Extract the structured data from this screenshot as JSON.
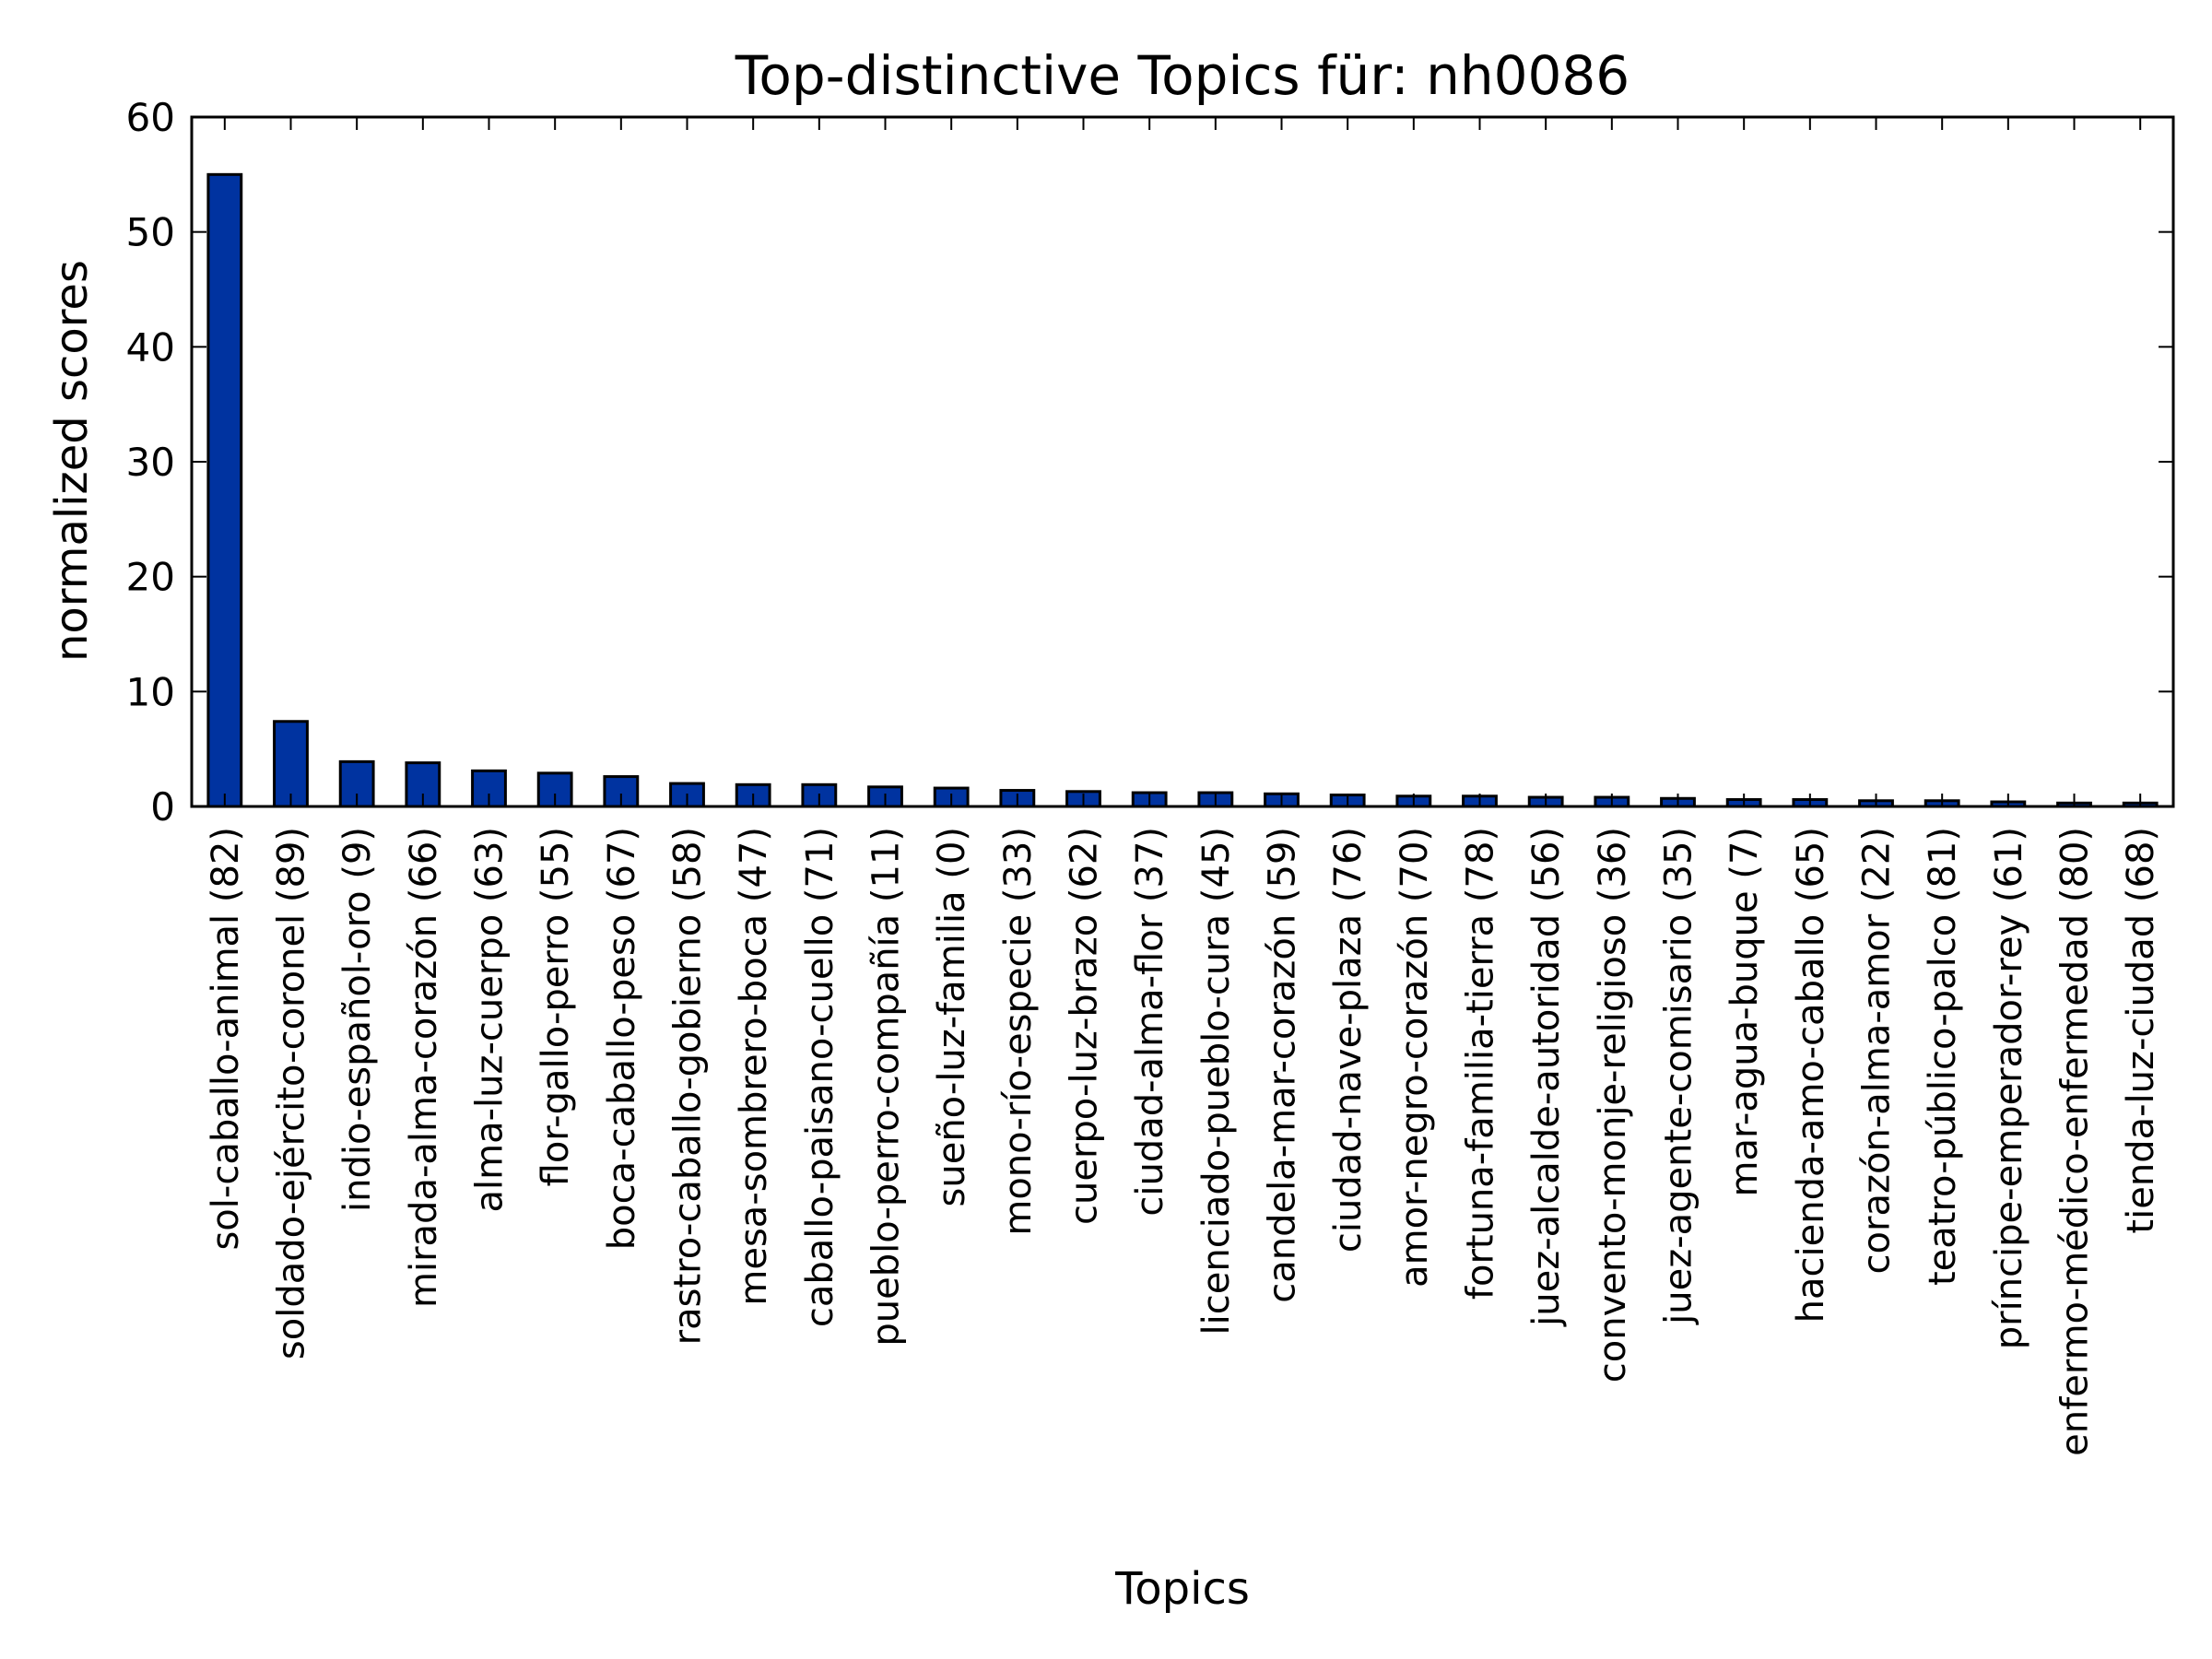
{
  "chart_data": {
    "type": "bar",
    "title": "Top-distinctive Topics für: nh0086",
    "xlabel": "Topics",
    "ylabel": "normalized scores",
    "ylim": [
      0,
      60
    ],
    "yticks": [
      0,
      10,
      20,
      30,
      40,
      50,
      60
    ],
    "grid": false,
    "bar_color": "#0033a0",
    "categories": [
      "sol-caballo-animal (82)",
      "soldado-ejército-coronel (89)",
      "indio-español-oro (9)",
      "mirada-alma-corazón (66)",
      "alma-luz-cuerpo (63)",
      "flor-gallo-perro (55)",
      "boca-caballo-peso (67)",
      "rastro-caballo-gobierno (58)",
      "mesa-sombrero-boca (47)",
      "caballo-paisano-cuello (71)",
      "pueblo-perro-compañía (11)",
      "sueño-luz-familia (0)",
      "mono-río-especie (33)",
      "cuerpo-luz-brazo (62)",
      "ciudad-alma-flor (37)",
      "licenciado-pueblo-cura (45)",
      "candela-mar-corazón (59)",
      "ciudad-nave-plaza (76)",
      "amor-negro-corazón (70)",
      "fortuna-familia-tierra (78)",
      "juez-alcalde-autoridad (56)",
      "convento-monje-religioso (36)",
      "juez-agente-comisario (35)",
      "mar-agua-buque (7)",
      "hacienda-amo-caballo (65)",
      "corazón-alma-amor (22)",
      "teatro-público-palco (81)",
      "príncipe-emperador-rey (61)",
      "enfermo-médico-enfermedad (80)",
      "tienda-luz-ciudad (68)"
    ],
    "values": [
      55.0,
      7.4,
      3.9,
      3.8,
      3.1,
      2.9,
      2.6,
      2.0,
      1.9,
      1.9,
      1.7,
      1.6,
      1.4,
      1.3,
      1.2,
      1.2,
      1.1,
      1.0,
      0.9,
      0.9,
      0.8,
      0.8,
      0.7,
      0.6,
      0.6,
      0.5,
      0.5,
      0.4,
      0.3,
      0.3
    ]
  }
}
